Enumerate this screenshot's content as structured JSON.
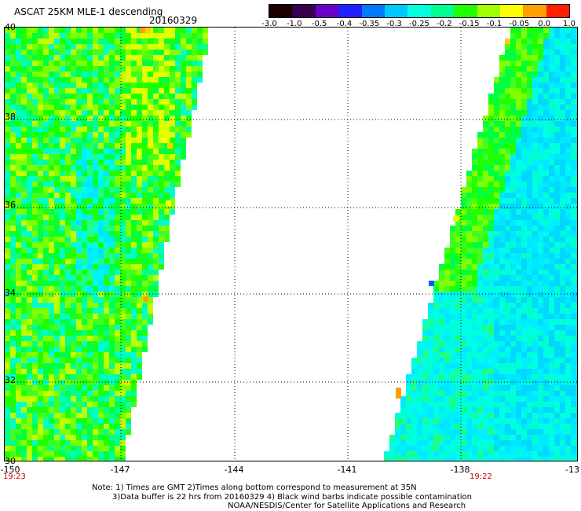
{
  "header": {
    "title": "ASCAT 25KM MLE-1 descending",
    "date": "20160329"
  },
  "colorbar": {
    "labels": [
      "-3.0",
      "-1.0",
      "-0.5",
      "-0.4",
      "-0.35",
      "-0.3",
      "-0.25",
      "-0.2",
      "-0.15",
      "-0.1",
      "-0.05",
      "0.0",
      "1.0"
    ],
    "colors": [
      "#1a0000",
      "#3a0050",
      "#6a00c8",
      "#2020ff",
      "#0078ff",
      "#00c8ff",
      "#00ffe0",
      "#00ff90",
      "#20ff00",
      "#a0ff00",
      "#ffff00",
      "#ffa000",
      "#ff2000"
    ]
  },
  "map": {
    "lat_labels": [
      "40",
      "38",
      "36",
      "34",
      "32",
      "30"
    ],
    "lon_labels": [
      "-150",
      "-147",
      "-144",
      "-141",
      "-138",
      "-13"
    ],
    "lat_range": [
      30,
      40
    ],
    "lon_range": [
      -150,
      -135
    ]
  },
  "times": {
    "left": "19:23",
    "right": "19:22"
  },
  "notes": {
    "line1": "Note: 1) Times are GMT 2)Times along bottom correspond to measurement at 35N",
    "line2": "3)Data buffer is 22 hrs from 20160329 4) Black wind barbs indicate possible contamination",
    "line3": "NOAA/NESDIS/Center for Satellite Applications and Research"
  }
}
